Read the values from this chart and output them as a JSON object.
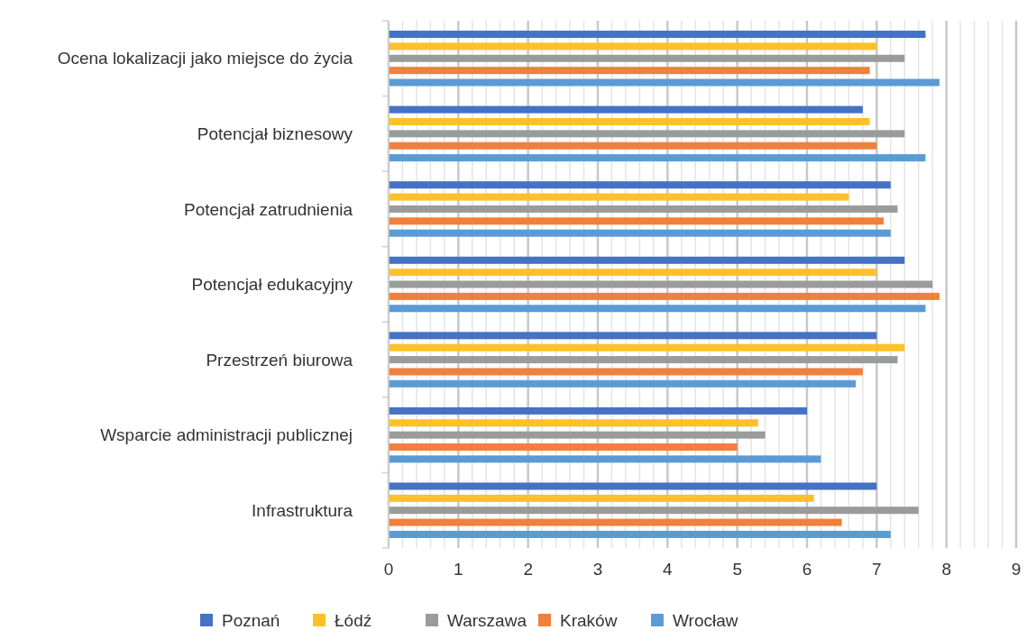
{
  "chart_data": {
    "type": "bar",
    "orientation": "horizontal",
    "categories": [
      "Ocena lokalizacji jako miejsce do życia",
      "Potencjał biznesowy",
      "Potencjał zatrudnienia",
      "Potencjał edukacyjny",
      "Przestrzeń biurowa",
      "Wsparcie administracji publicznej",
      "Infrastruktura"
    ],
    "series": [
      {
        "name": "Poznań",
        "color": "#4472c4",
        "values": [
          7.7,
          6.8,
          7.2,
          7.4,
          7.0,
          6.0,
          7.0
        ]
      },
      {
        "name": "Łódź",
        "color": "#ffc02a",
        "values": [
          7.0,
          6.9,
          6.6,
          7.0,
          7.4,
          5.3,
          6.1
        ]
      },
      {
        "name": "Warszawa",
        "color": "#9a9c9c",
        "values": [
          7.4,
          7.4,
          7.3,
          7.8,
          7.3,
          5.4,
          7.6
        ]
      },
      {
        "name": "Kraków",
        "color": "#f0803c",
        "values": [
          6.9,
          7.0,
          7.1,
          7.9,
          6.8,
          5.0,
          6.5
        ]
      },
      {
        "name": "Wrocław",
        "color": "#5b9bd5",
        "values": [
          7.9,
          7.7,
          7.2,
          7.7,
          6.7,
          6.2,
          7.2
        ]
      }
    ],
    "xlim": [
      0,
      9
    ],
    "xticks": [
      0,
      {
        "value": 0.2,
        "label": null
      },
      {
        "value": 0.4,
        "label": null
      },
      {
        "value": 0.6,
        "label": null
      },
      {
        "value": 0.8,
        "label": null
      },
      1,
      {
        "value": 1.2,
        "label": null
      },
      {
        "value": 1.4,
        "label": null
      },
      {
        "value": 1.6,
        "label": null
      },
      {
        "value": 1.8,
        "label": null
      },
      2,
      {
        "value": 2.2,
        "label": null
      },
      {
        "value": 2.4,
        "label": null
      },
      {
        "value": 2.6,
        "label": null
      },
      {
        "value": 2.8,
        "label": null
      },
      3,
      {
        "value": 3.2,
        "label": null
      },
      {
        "value": 3.4,
        "label": null
      },
      {
        "value": 3.6,
        "label": null
      },
      {
        "value": 3.8,
        "label": null
      },
      4,
      {
        "value": 4.2,
        "label": null
      },
      {
        "value": 4.4,
        "label": null
      },
      {
        "value": 4.6,
        "label": null
      },
      {
        "value": 4.8,
        "label": null
      },
      5,
      {
        "value": 5.2,
        "label": null
      },
      {
        "value": 5.4,
        "label": null
      },
      {
        "value": 5.6,
        "label": null
      },
      {
        "value": 5.8,
        "label": null
      },
      6,
      {
        "value": 6.2,
        "label": null
      },
      {
        "value": 6.4,
        "label": null
      },
      {
        "value": 6.6,
        "label": null
      },
      {
        "value": 6.8,
        "label": null
      },
      7,
      {
        "value": 7.2,
        "label": null
      },
      {
        "value": 7.4,
        "label": null
      },
      {
        "value": 7.6,
        "label": null
      },
      {
        "value": 7.8,
        "label": null
      },
      8,
      {
        "value": 8.2,
        "label": null
      },
      {
        "value": 8.4,
        "label": null
      },
      {
        "value": 8.6,
        "label": null
      },
      {
        "value": 8.8,
        "label": null
      },
      9
    ],
    "grid": "x",
    "legend": "bottom"
  }
}
